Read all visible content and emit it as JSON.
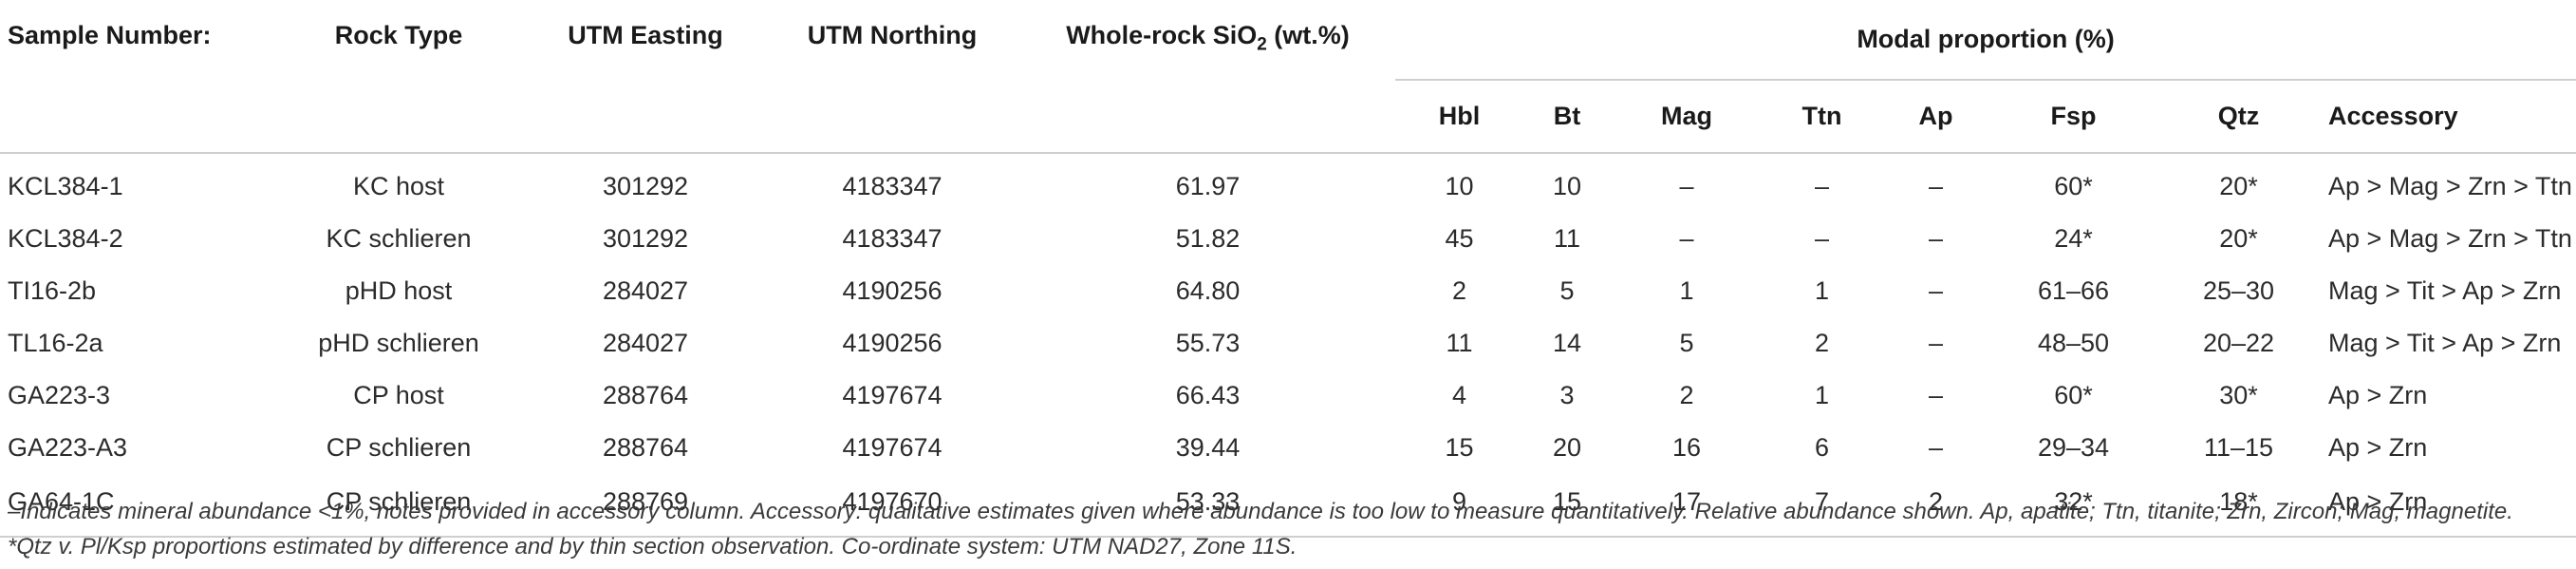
{
  "columns": {
    "sample": "Sample Number:",
    "rock": "Rock Type",
    "easting": "UTM Easting",
    "northing": "UTM Northing",
    "sio2_prefix": "Whole-rock SiO",
    "sio2_sub": "2",
    "sio2_suffix": " (wt.%)",
    "modal_group": "Modal proportion (%)",
    "hbl": "Hbl",
    "bt": "Bt",
    "mag": "Mag",
    "ttn": "Ttn",
    "ap": "Ap",
    "fsp": "Fsp",
    "qtz": "Qtz",
    "accessory": "Accessory"
  },
  "rows": [
    {
      "sample": "KCL384-1",
      "rock": "KC host",
      "easting": "301292",
      "northing": "4183347",
      "sio2": "61.97",
      "hbl": "10",
      "bt": "10",
      "mag": "–",
      "ttn": "–",
      "ap": "–",
      "fsp": "60*",
      "qtz": "20*",
      "accessory": "Ap > Mag > Zrn > Ttn"
    },
    {
      "sample": "KCL384-2",
      "rock": "KC schlieren",
      "easting": "301292",
      "northing": "4183347",
      "sio2": "51.82",
      "hbl": "45",
      "bt": "11",
      "mag": "–",
      "ttn": "–",
      "ap": "–",
      "fsp": "24*",
      "qtz": "20*",
      "accessory": "Ap > Mag > Zrn > Ttn"
    },
    {
      "sample": "TI16-2b",
      "rock": "pHD host",
      "easting": "284027",
      "northing": "4190256",
      "sio2": "64.80",
      "hbl": "2",
      "bt": "5",
      "mag": "1",
      "ttn": "1",
      "ap": "–",
      "fsp": "61–66",
      "qtz": "25–30",
      "accessory": "Mag > Tit > Ap > Zrn"
    },
    {
      "sample": "TL16-2a",
      "rock": "pHD schlieren",
      "easting": "284027",
      "northing": "4190256",
      "sio2": "55.73",
      "hbl": "11",
      "bt": "14",
      "mag": "5",
      "ttn": "2",
      "ap": "–",
      "fsp": "48–50",
      "qtz": "20–22",
      "accessory": "Mag > Tit > Ap > Zrn"
    },
    {
      "sample": "GA223-3",
      "rock": "CP host",
      "easting": "288764",
      "northing": "4197674",
      "sio2": "66.43",
      "hbl": "4",
      "bt": "3",
      "mag": "2",
      "ttn": "1",
      "ap": "–",
      "fsp": "60*",
      "qtz": "30*",
      "accessory": "Ap > Zrn"
    },
    {
      "sample": "GA223-A3",
      "rock": "CP schlieren",
      "easting": "288764",
      "northing": "4197674",
      "sio2": "39.44",
      "hbl": "15",
      "bt": "20",
      "mag": "16",
      "ttn": "6",
      "ap": "–",
      "fsp": "29–34",
      "qtz": "11–15",
      "accessory": "Ap > Zrn"
    },
    {
      "sample": "GA64-1C",
      "rock": "CP schlieren",
      "easting": "288769",
      "northing": "4197670",
      "sio2": "53.33",
      "hbl": "9",
      "bt": "15",
      "mag": "17",
      "ttn": "7",
      "ap": "2",
      "fsp": "32*",
      "qtz": "18*",
      "accessory": "Ap > Zrn"
    }
  ],
  "footnote": "–Indicates mineral abundance <1%, notes provided in accessory column. Accessory: qualitative estimates given where abundance is too low to measure quantitatively. Relative abundance shown. Ap, apatite; Ttn, titanite; Zrn, Zircon; Mag, magnetite. *Qtz v. Pl/Ksp proportions estimated by difference and by thin section observation. Co-ordinate system: UTM NAD27, Zone 11S."
}
